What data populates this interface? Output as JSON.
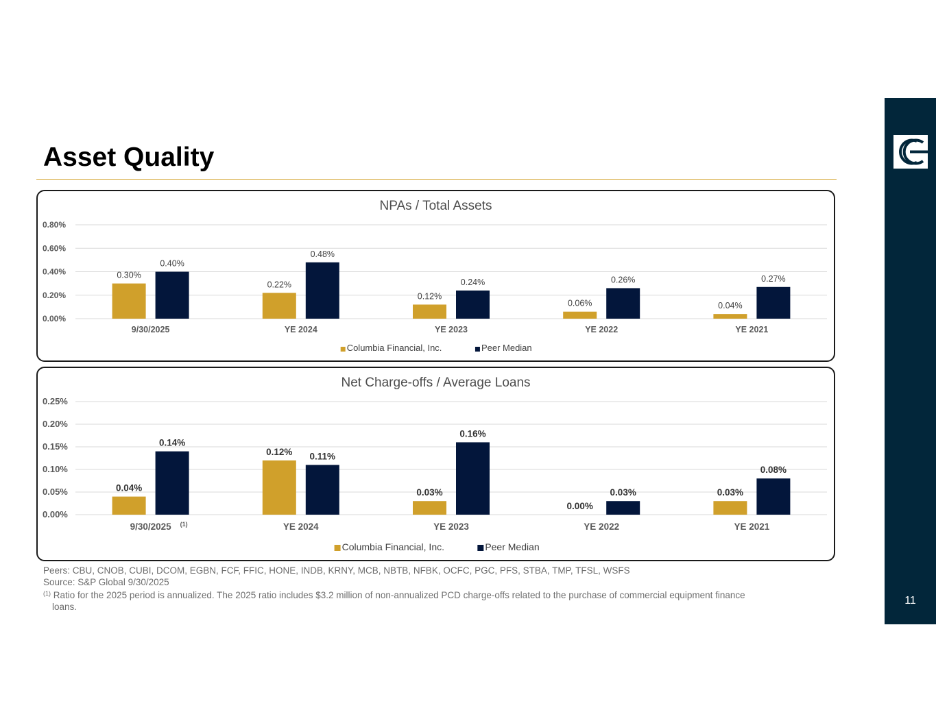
{
  "header": {
    "title": "Asset Quality"
  },
  "sidebar": {
    "page_number": "11",
    "logo": "columbia-logo-icon"
  },
  "colors": {
    "columbia": "#d0a02b",
    "peer": "#03163b",
    "accent_rule": "#d4a22d",
    "sidebar": "#02263a"
  },
  "chart_data": [
    {
      "type": "bar",
      "title": "NPAs / Total Assets",
      "categories": [
        "9/30/2025",
        "YE 2024",
        "YE 2023",
        "YE 2022",
        "YE 2021"
      ],
      "series": [
        {
          "name": "Columbia Financial, Inc.",
          "values": [
            0.3,
            0.22,
            0.12,
            0.06,
            0.04
          ],
          "labels": [
            "0.30%",
            "0.22%",
            "0.12%",
            "0.06%",
            "0.04%"
          ]
        },
        {
          "name": "Peer Median",
          "values": [
            0.4,
            0.48,
            0.24,
            0.26,
            0.27
          ],
          "labels": [
            "0.40%",
            "0.48%",
            "0.24%",
            "0.26%",
            "0.27%"
          ]
        }
      ],
      "yticks": [
        "0.00%",
        "0.20%",
        "0.40%",
        "0.60%",
        "0.80%"
      ],
      "ylim": [
        0,
        0.8
      ],
      "ylabel": "",
      "xlabel": "",
      "legend": "bottom",
      "label_weight": "normal",
      "category_footnote": ""
    },
    {
      "type": "bar",
      "title": "Net Charge-offs / Average Loans",
      "categories": [
        "9/30/2025",
        "YE 2024",
        "YE 2023",
        "YE 2022",
        "YE 2021"
      ],
      "series": [
        {
          "name": "Columbia Financial, Inc.",
          "values": [
            0.04,
            0.12,
            0.03,
            0.0,
            0.03
          ],
          "labels": [
            "0.04%",
            "0.12%",
            "0.03%",
            "0.00%",
            "0.03%"
          ]
        },
        {
          "name": "Peer Median",
          "values": [
            0.14,
            0.11,
            0.16,
            0.03,
            0.08
          ],
          "labels": [
            "0.14%",
            "0.11%",
            "0.16%",
            "0.03%",
            "0.08%"
          ]
        }
      ],
      "yticks": [
        "0.00%",
        "0.05%",
        "0.10%",
        "0.15%",
        "0.20%",
        "0.25%"
      ],
      "ylim": [
        0,
        0.25
      ],
      "ylabel": "",
      "xlabel": "",
      "legend": "bottom",
      "label_weight": "bold",
      "category_footnote": "(1)"
    }
  ],
  "footnotes": {
    "peers": "Peers: CBU, CNOB, CUBI, DCOM, EGBN, FCF, FFIC, HONE, INDB, KRNY, MCB, NBTB, NFBK, OCFC, PGC, PFS, STBA, TMP, TFSL, WSFS",
    "source": "Source: S&P Global 9/30/2025",
    "note_marker": "(1)",
    "note_line1": "Ratio for the 2025 period is annualized. The 2025 ratio includes $3.2 million of non-annualized PCD charge-offs related to the purchase of commercial equipment finance",
    "note_line2": "loans."
  }
}
